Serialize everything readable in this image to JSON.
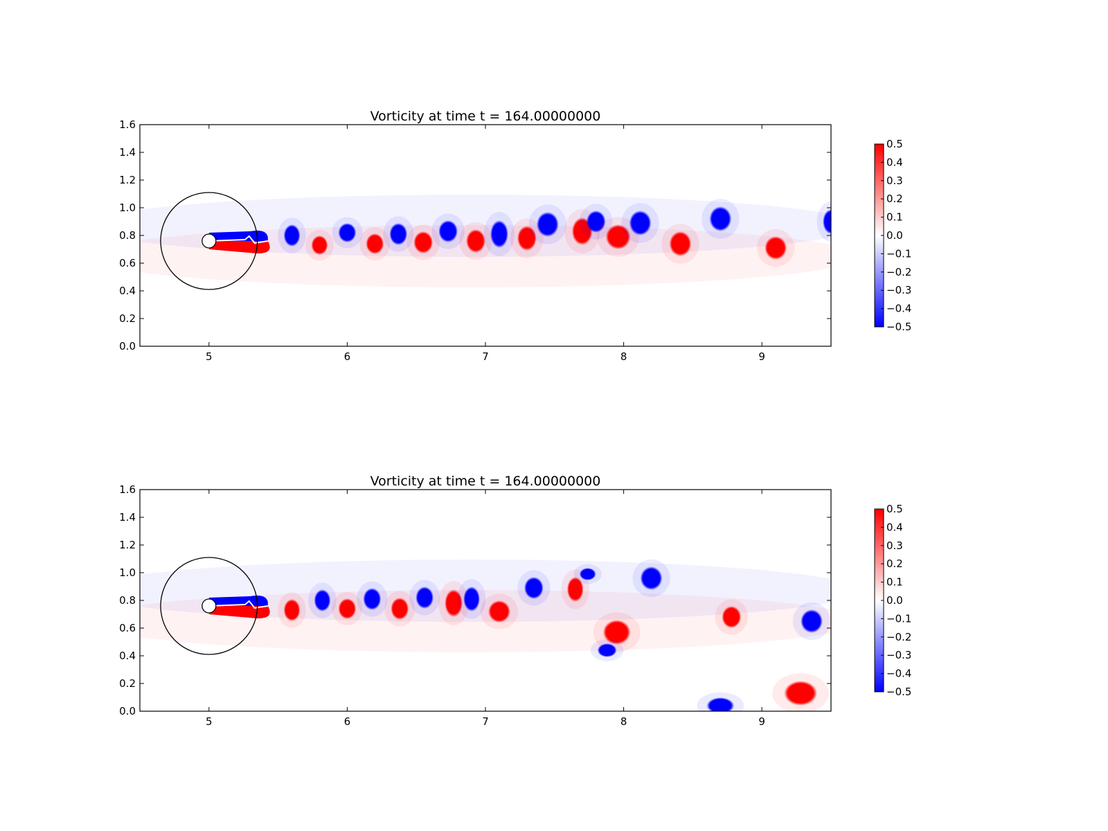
{
  "chart_data": [
    {
      "type": "heatmap",
      "title": "Vorticity at time t =   164.00000000",
      "xlabel": "",
      "ylabel": "",
      "xlim": [
        4.5,
        9.5
      ],
      "ylim": [
        0.0,
        1.6
      ],
      "xticks": [
        "5",
        "6",
        "7",
        "8",
        "9"
      ],
      "yticks": [
        "0.0",
        "0.2",
        "0.4",
        "0.6",
        "0.8",
        "1.0",
        "1.2",
        "1.4",
        "1.6"
      ],
      "colorbar": {
        "range": [
          -0.5,
          0.5
        ],
        "ticks": [
          "0.5",
          "0.4",
          "0.3",
          "0.2",
          "0.1",
          "0.0",
          "−0.1",
          "−0.2",
          "−0.3",
          "−0.4",
          "−0.5"
        ],
        "colors": {
          "high": "#ff0000",
          "mid": "#ffffff",
          "low": "#0000ff"
        }
      },
      "cylinder": {
        "center": [
          5.0,
          0.76
        ],
        "radius": 0.05
      },
      "domain_circle": {
        "center": [
          5.0,
          0.76
        ],
        "radius": 0.35
      },
      "vortices": [
        {
          "x": 5.6,
          "y": 0.8,
          "rx": 0.06,
          "ry": 0.08,
          "sign": -1
        },
        {
          "x": 5.8,
          "y": 0.73,
          "rx": 0.06,
          "ry": 0.07,
          "sign": 1
        },
        {
          "x": 6.0,
          "y": 0.82,
          "rx": 0.065,
          "ry": 0.07,
          "sign": -1
        },
        {
          "x": 6.2,
          "y": 0.74,
          "rx": 0.065,
          "ry": 0.075,
          "sign": 1
        },
        {
          "x": 6.37,
          "y": 0.81,
          "rx": 0.065,
          "ry": 0.08,
          "sign": -1
        },
        {
          "x": 6.55,
          "y": 0.75,
          "rx": 0.07,
          "ry": 0.08,
          "sign": 1
        },
        {
          "x": 6.73,
          "y": 0.83,
          "rx": 0.07,
          "ry": 0.08,
          "sign": -1
        },
        {
          "x": 6.93,
          "y": 0.76,
          "rx": 0.07,
          "ry": 0.085,
          "sign": 1
        },
        {
          "x": 7.1,
          "y": 0.81,
          "rx": 0.065,
          "ry": 0.1,
          "sign": -1
        },
        {
          "x": 7.3,
          "y": 0.78,
          "rx": 0.07,
          "ry": 0.09,
          "sign": 1
        },
        {
          "x": 7.45,
          "y": 0.88,
          "rx": 0.08,
          "ry": 0.09,
          "sign": -1
        },
        {
          "x": 7.7,
          "y": 0.83,
          "rx": 0.075,
          "ry": 0.1,
          "sign": 1
        },
        {
          "x": 7.8,
          "y": 0.9,
          "rx": 0.07,
          "ry": 0.08,
          "sign": -1
        },
        {
          "x": 7.96,
          "y": 0.79,
          "rx": 0.09,
          "ry": 0.09,
          "sign": 1
        },
        {
          "x": 8.12,
          "y": 0.89,
          "rx": 0.08,
          "ry": 0.09,
          "sign": -1
        },
        {
          "x": 8.41,
          "y": 0.74,
          "rx": 0.08,
          "ry": 0.09,
          "sign": 1
        },
        {
          "x": 8.7,
          "y": 0.92,
          "rx": 0.08,
          "ry": 0.09,
          "sign": -1
        },
        {
          "x": 9.1,
          "y": 0.71,
          "rx": 0.08,
          "ry": 0.085,
          "sign": 1
        },
        {
          "x": 9.5,
          "y": 0.9,
          "rx": 0.06,
          "ry": 0.09,
          "sign": -1
        }
      ]
    },
    {
      "type": "heatmap",
      "title": "Vorticity at time t =   164.00000000",
      "xlabel": "",
      "ylabel": "",
      "xlim": [
        4.5,
        9.5
      ],
      "ylim": [
        0.0,
        1.6
      ],
      "xticks": [
        "5",
        "6",
        "7",
        "8",
        "9"
      ],
      "yticks": [
        "0.0",
        "0.2",
        "0.4",
        "0.6",
        "0.8",
        "1.0",
        "1.2",
        "1.4",
        "1.6"
      ],
      "colorbar": {
        "range": [
          -0.5,
          0.5
        ],
        "ticks": [
          "0.5",
          "0.4",
          "0.3",
          "0.2",
          "0.1",
          "0.0",
          "−0.1",
          "−0.2",
          "−0.3",
          "−0.4",
          "−0.5"
        ],
        "colors": {
          "high": "#ff0000",
          "mid": "#ffffff",
          "low": "#0000ff"
        }
      },
      "cylinder": {
        "center": [
          5.0,
          0.76
        ],
        "radius": 0.05
      },
      "domain_circle": {
        "center": [
          5.0,
          0.76
        ],
        "radius": 0.35
      },
      "vortices": [
        {
          "x": 5.6,
          "y": 0.73,
          "rx": 0.06,
          "ry": 0.08,
          "sign": 1
        },
        {
          "x": 5.82,
          "y": 0.8,
          "rx": 0.06,
          "ry": 0.08,
          "sign": -1
        },
        {
          "x": 6.0,
          "y": 0.74,
          "rx": 0.065,
          "ry": 0.075,
          "sign": 1
        },
        {
          "x": 6.18,
          "y": 0.81,
          "rx": 0.065,
          "ry": 0.08,
          "sign": -1
        },
        {
          "x": 6.38,
          "y": 0.74,
          "rx": 0.065,
          "ry": 0.08,
          "sign": 1
        },
        {
          "x": 6.56,
          "y": 0.82,
          "rx": 0.065,
          "ry": 0.08,
          "sign": -1
        },
        {
          "x": 6.77,
          "y": 0.78,
          "rx": 0.065,
          "ry": 0.1,
          "sign": 1
        },
        {
          "x": 6.9,
          "y": 0.81,
          "rx": 0.06,
          "ry": 0.09,
          "sign": -1
        },
        {
          "x": 7.1,
          "y": 0.72,
          "rx": 0.08,
          "ry": 0.08,
          "sign": 1
        },
        {
          "x": 7.35,
          "y": 0.89,
          "rx": 0.07,
          "ry": 0.08,
          "sign": -1
        },
        {
          "x": 7.65,
          "y": 0.88,
          "rx": 0.06,
          "ry": 0.09,
          "sign": 1
        },
        {
          "x": 7.74,
          "y": 0.99,
          "rx": 0.06,
          "ry": 0.045,
          "sign": -1
        },
        {
          "x": 7.95,
          "y": 0.57,
          "rx": 0.1,
          "ry": 0.09,
          "sign": 1
        },
        {
          "x": 7.88,
          "y": 0.44,
          "rx": 0.07,
          "ry": 0.05,
          "sign": -1
        },
        {
          "x": 8.2,
          "y": 0.96,
          "rx": 0.08,
          "ry": 0.085,
          "sign": -1
        },
        {
          "x": 8.78,
          "y": 0.68,
          "rx": 0.07,
          "ry": 0.08,
          "sign": 1
        },
        {
          "x": 9.36,
          "y": 0.65,
          "rx": 0.08,
          "ry": 0.085,
          "sign": -1
        },
        {
          "x": 9.28,
          "y": 0.13,
          "rx": 0.12,
          "ry": 0.09,
          "sign": 1
        },
        {
          "x": 8.7,
          "y": 0.04,
          "rx": 0.1,
          "ry": 0.06,
          "sign": -1
        }
      ]
    }
  ]
}
